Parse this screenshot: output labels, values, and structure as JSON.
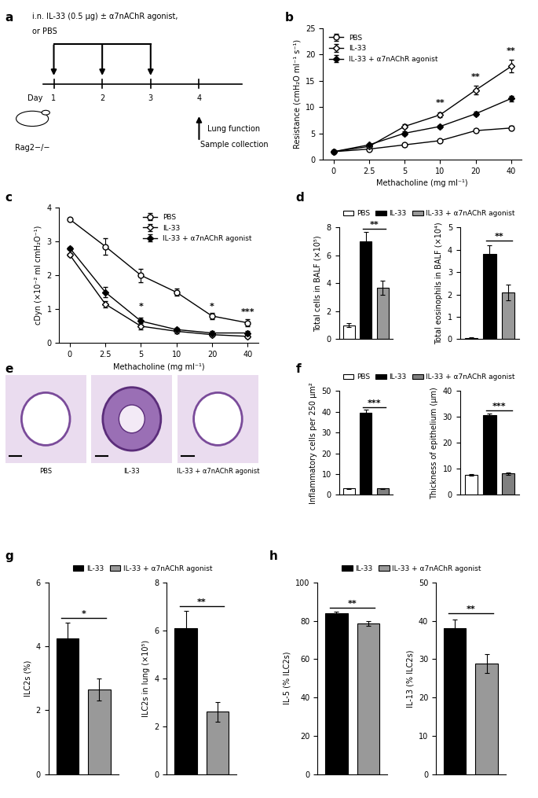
{
  "chart_data": [
    {
      "panel_label": "b",
      "type": "line",
      "x_label": "Methacholine (mg ml⁻¹)",
      "y_label": "Resistance (cmH₂O ml⁻¹ s⁻¹)",
      "categories": [
        0,
        2.5,
        5,
        10,
        20,
        40
      ],
      "ylim": [
        0,
        25
      ],
      "yticks": [
        0,
        5,
        10,
        15,
        20,
        25
      ],
      "legend": "upper left",
      "series": [
        {
          "name": "PBS",
          "color": "#000000",
          "marker": "open_circle",
          "values": [
            1.5,
            2.0,
            2.8,
            3.6,
            5.5,
            6.0
          ],
          "errors": [
            0.1,
            0.15,
            0.2,
            0.2,
            0.3,
            0.4
          ]
        },
        {
          "name": "IL-33",
          "color": "#000000",
          "marker": "open_diamond",
          "values": [
            1.5,
            2.5,
            6.3,
            8.5,
            13.2,
            17.7
          ],
          "errors": [
            0.1,
            0.2,
            0.4,
            0.5,
            0.8,
            1.2
          ]
        },
        {
          "name": "IL-33 + α7nAChR agonist",
          "color": "#000000",
          "marker": "diamond",
          "values": [
            1.5,
            2.8,
            5.0,
            6.3,
            8.7,
            11.6
          ],
          "errors": [
            0.1,
            0.2,
            0.3,
            0.3,
            0.4,
            0.5
          ]
        }
      ],
      "annotations": [
        {
          "text": "**",
          "x": 10,
          "y": 10.0
        },
        {
          "text": "**",
          "x": 20,
          "y": 15.0
        },
        {
          "text": "**",
          "x": 40,
          "y": 19.8
        }
      ]
    },
    {
      "panel_label": "c",
      "type": "line",
      "x_label": "Methacholine (mg ml⁻¹)",
      "y_label": "cDyn (×10⁻² ml cmH₂O⁻¹)",
      "categories": [
        0,
        2.5,
        5,
        10,
        20,
        40
      ],
      "ylim": [
        0,
        4
      ],
      "yticks": [
        0,
        1,
        2,
        3,
        4
      ],
      "legend": "upper right",
      "series": [
        {
          "name": "PBS",
          "color": "#000000",
          "marker": "open_circle",
          "values": [
            3.65,
            2.85,
            2.0,
            1.5,
            0.8,
            0.6
          ],
          "errors": [
            0.05,
            0.25,
            0.2,
            0.1,
            0.1,
            0.1
          ]
        },
        {
          "name": "IL-33",
          "color": "#000000",
          "marker": "open_diamond",
          "values": [
            2.6,
            1.15,
            0.5,
            0.35,
            0.25,
            0.2
          ],
          "errors": [
            0.05,
            0.1,
            0.1,
            0.05,
            0.05,
            0.05
          ]
        },
        {
          "name": "IL-33 + α7nAChR agonist",
          "color": "#000000",
          "marker": "diamond",
          "values": [
            2.8,
            1.5,
            0.65,
            0.4,
            0.3,
            0.3
          ],
          "errors": [
            0.05,
            0.15,
            0.1,
            0.05,
            0.05,
            0.05
          ]
        }
      ],
      "annotations": [
        {
          "text": "*",
          "x": 5,
          "y": 0.95
        },
        {
          "text": "*",
          "x": 20,
          "y": 0.95
        },
        {
          "text": "***",
          "x": 40,
          "y": 0.8
        }
      ]
    },
    {
      "panel_label": "d",
      "type": "bar",
      "tick_labels": "y",
      "legend": "top",
      "categories": [
        "PBS",
        "IL-33",
        "IL-33 + α7nAChR agonist"
      ],
      "colors": [
        "#ffffff",
        "#000000",
        "#999999"
      ],
      "charts": [
        {
          "y_label": "Total cells in BALF (×10⁵)",
          "values": [
            1.0,
            7.0,
            3.7
          ],
          "errors": [
            0.15,
            0.7,
            0.5
          ],
          "ylim": [
            0,
            8
          ],
          "yticks": [
            0,
            2,
            4,
            6,
            8
          ],
          "significance": [
            {
              "text": "**",
              "between": [
                "IL-33",
                "IL-33 + α7nAChR agonist"
              ],
              "y": 7.9
            }
          ]
        },
        {
          "y_label": "Total eosinophils in BALF (×10⁴)",
          "values": [
            0.05,
            3.8,
            2.1
          ],
          "errors": [
            0.02,
            0.4,
            0.35
          ],
          "ylim": [
            0,
            5
          ],
          "yticks": [
            0,
            1,
            2,
            3,
            4,
            5
          ],
          "significance": [
            {
              "text": "**",
              "between": [
                "IL-33",
                "IL-33 + α7nAChR agonist"
              ],
              "y": 4.4
            }
          ]
        }
      ]
    },
    {
      "panel_label": "f",
      "type": "bar",
      "tick_labels": "y",
      "legend": "top",
      "categories": [
        "PBS",
        "IL-33",
        "IL-33 + α7nAChR agonist"
      ],
      "colors": [
        "#ffffff",
        "#000000",
        "#808080"
      ],
      "charts": [
        {
          "y_label": "Inflammatory cells per 250 μm²",
          "values": [
            3.0,
            39.5,
            3.0
          ],
          "errors": [
            0.3,
            1.5,
            0.3
          ],
          "ylim": [
            0,
            50
          ],
          "yticks": [
            0,
            10,
            20,
            30,
            40,
            50
          ],
          "significance": [
            {
              "text": "***",
              "between": [
                "IL-33",
                "IL-33 + α7nAChR agonist"
              ],
              "y": 42
            }
          ]
        },
        {
          "y_label": "Thickness of epithelium (μm)",
          "values": [
            7.8,
            30.8,
            8.2
          ],
          "errors": [
            0.3,
            0.5,
            0.4
          ],
          "ylim": [
            0,
            40
          ],
          "yticks": [
            0,
            10,
            20,
            30,
            40
          ],
          "significance": [
            {
              "text": "***",
              "between": [
                "IL-33",
                "IL-33 + α7nAChR agonist"
              ],
              "y": 32.5
            }
          ]
        }
      ]
    },
    {
      "panel_label": "g",
      "type": "bar",
      "tick_labels": "y",
      "legend": "top",
      "categories": [
        "IL-33",
        "IL-33 + α7nAChR agonist"
      ],
      "colors": [
        "#000000",
        "#999999"
      ],
      "charts": [
        {
          "y_label": "ILC2s (%)",
          "values": [
            4.25,
            2.65
          ],
          "errors": [
            0.5,
            0.35
          ],
          "ylim": [
            0,
            6
          ],
          "yticks": [
            0,
            2,
            4,
            6
          ],
          "significance": [
            {
              "text": "*",
              "between": [
                "IL-33",
                "IL-33 + α7nAChR agonist"
              ],
              "y": 4.9
            }
          ]
        },
        {
          "y_label": "ILC2s in lung (×10⁵)",
          "values": [
            6.1,
            2.6
          ],
          "errors": [
            0.7,
            0.4
          ],
          "ylim": [
            0,
            8
          ],
          "yticks": [
            0,
            2,
            4,
            6,
            8
          ],
          "significance": [
            {
              "text": "**",
              "between": [
                "IL-33",
                "IL-33 + α7nAChR agonist"
              ],
              "y": 7.0
            }
          ]
        }
      ]
    },
    {
      "panel_label": "h",
      "type": "bar",
      "tick_labels": "y",
      "legend": "top",
      "categories": [
        "IL-33",
        "IL-33 + α7nAChR agonist"
      ],
      "colors": [
        "#000000",
        "#999999"
      ],
      "charts": [
        {
          "y_label": "IL-5 (% ILC2s)",
          "values": [
            84.0,
            78.5
          ],
          "errors": [
            0.8,
            1.2
          ],
          "ylim": [
            0,
            100
          ],
          "yticks": [
            0,
            20,
            40,
            60,
            80,
            100
          ],
          "significance": [
            {
              "text": "**",
              "between": [
                "IL-33",
                "IL-33 + α7nAChR agonist"
              ],
              "y": 87
            }
          ]
        },
        {
          "y_label": "IL-13 (% ILC2s)",
          "values": [
            38.0,
            28.8
          ],
          "errors": [
            2.3,
            2.5
          ],
          "ylim": [
            0,
            50
          ],
          "yticks": [
            0,
            10,
            20,
            30,
            40,
            50
          ],
          "significance": [
            {
              "text": "**",
              "between": [
                "IL-33",
                "IL-33 + α7nAChR agonist"
              ],
              "y": 42
            }
          ]
        }
      ]
    }
  ],
  "diagram": {
    "panel_label": "a",
    "treatment": [
      "i.n. IL-33 (0.5 μg) ± α7nAChR agonist,",
      "or PBS"
    ],
    "day_label": "Day",
    "days": [
      "1",
      "2",
      "3",
      "4"
    ],
    "mouse": "Rag2−/−",
    "readout": [
      "Lung function",
      "Sample collection"
    ]
  },
  "images": {
    "panel_label": "e",
    "labels": [
      "PBS",
      "IL-33",
      "IL-33 + α7nAChR agonist"
    ]
  }
}
